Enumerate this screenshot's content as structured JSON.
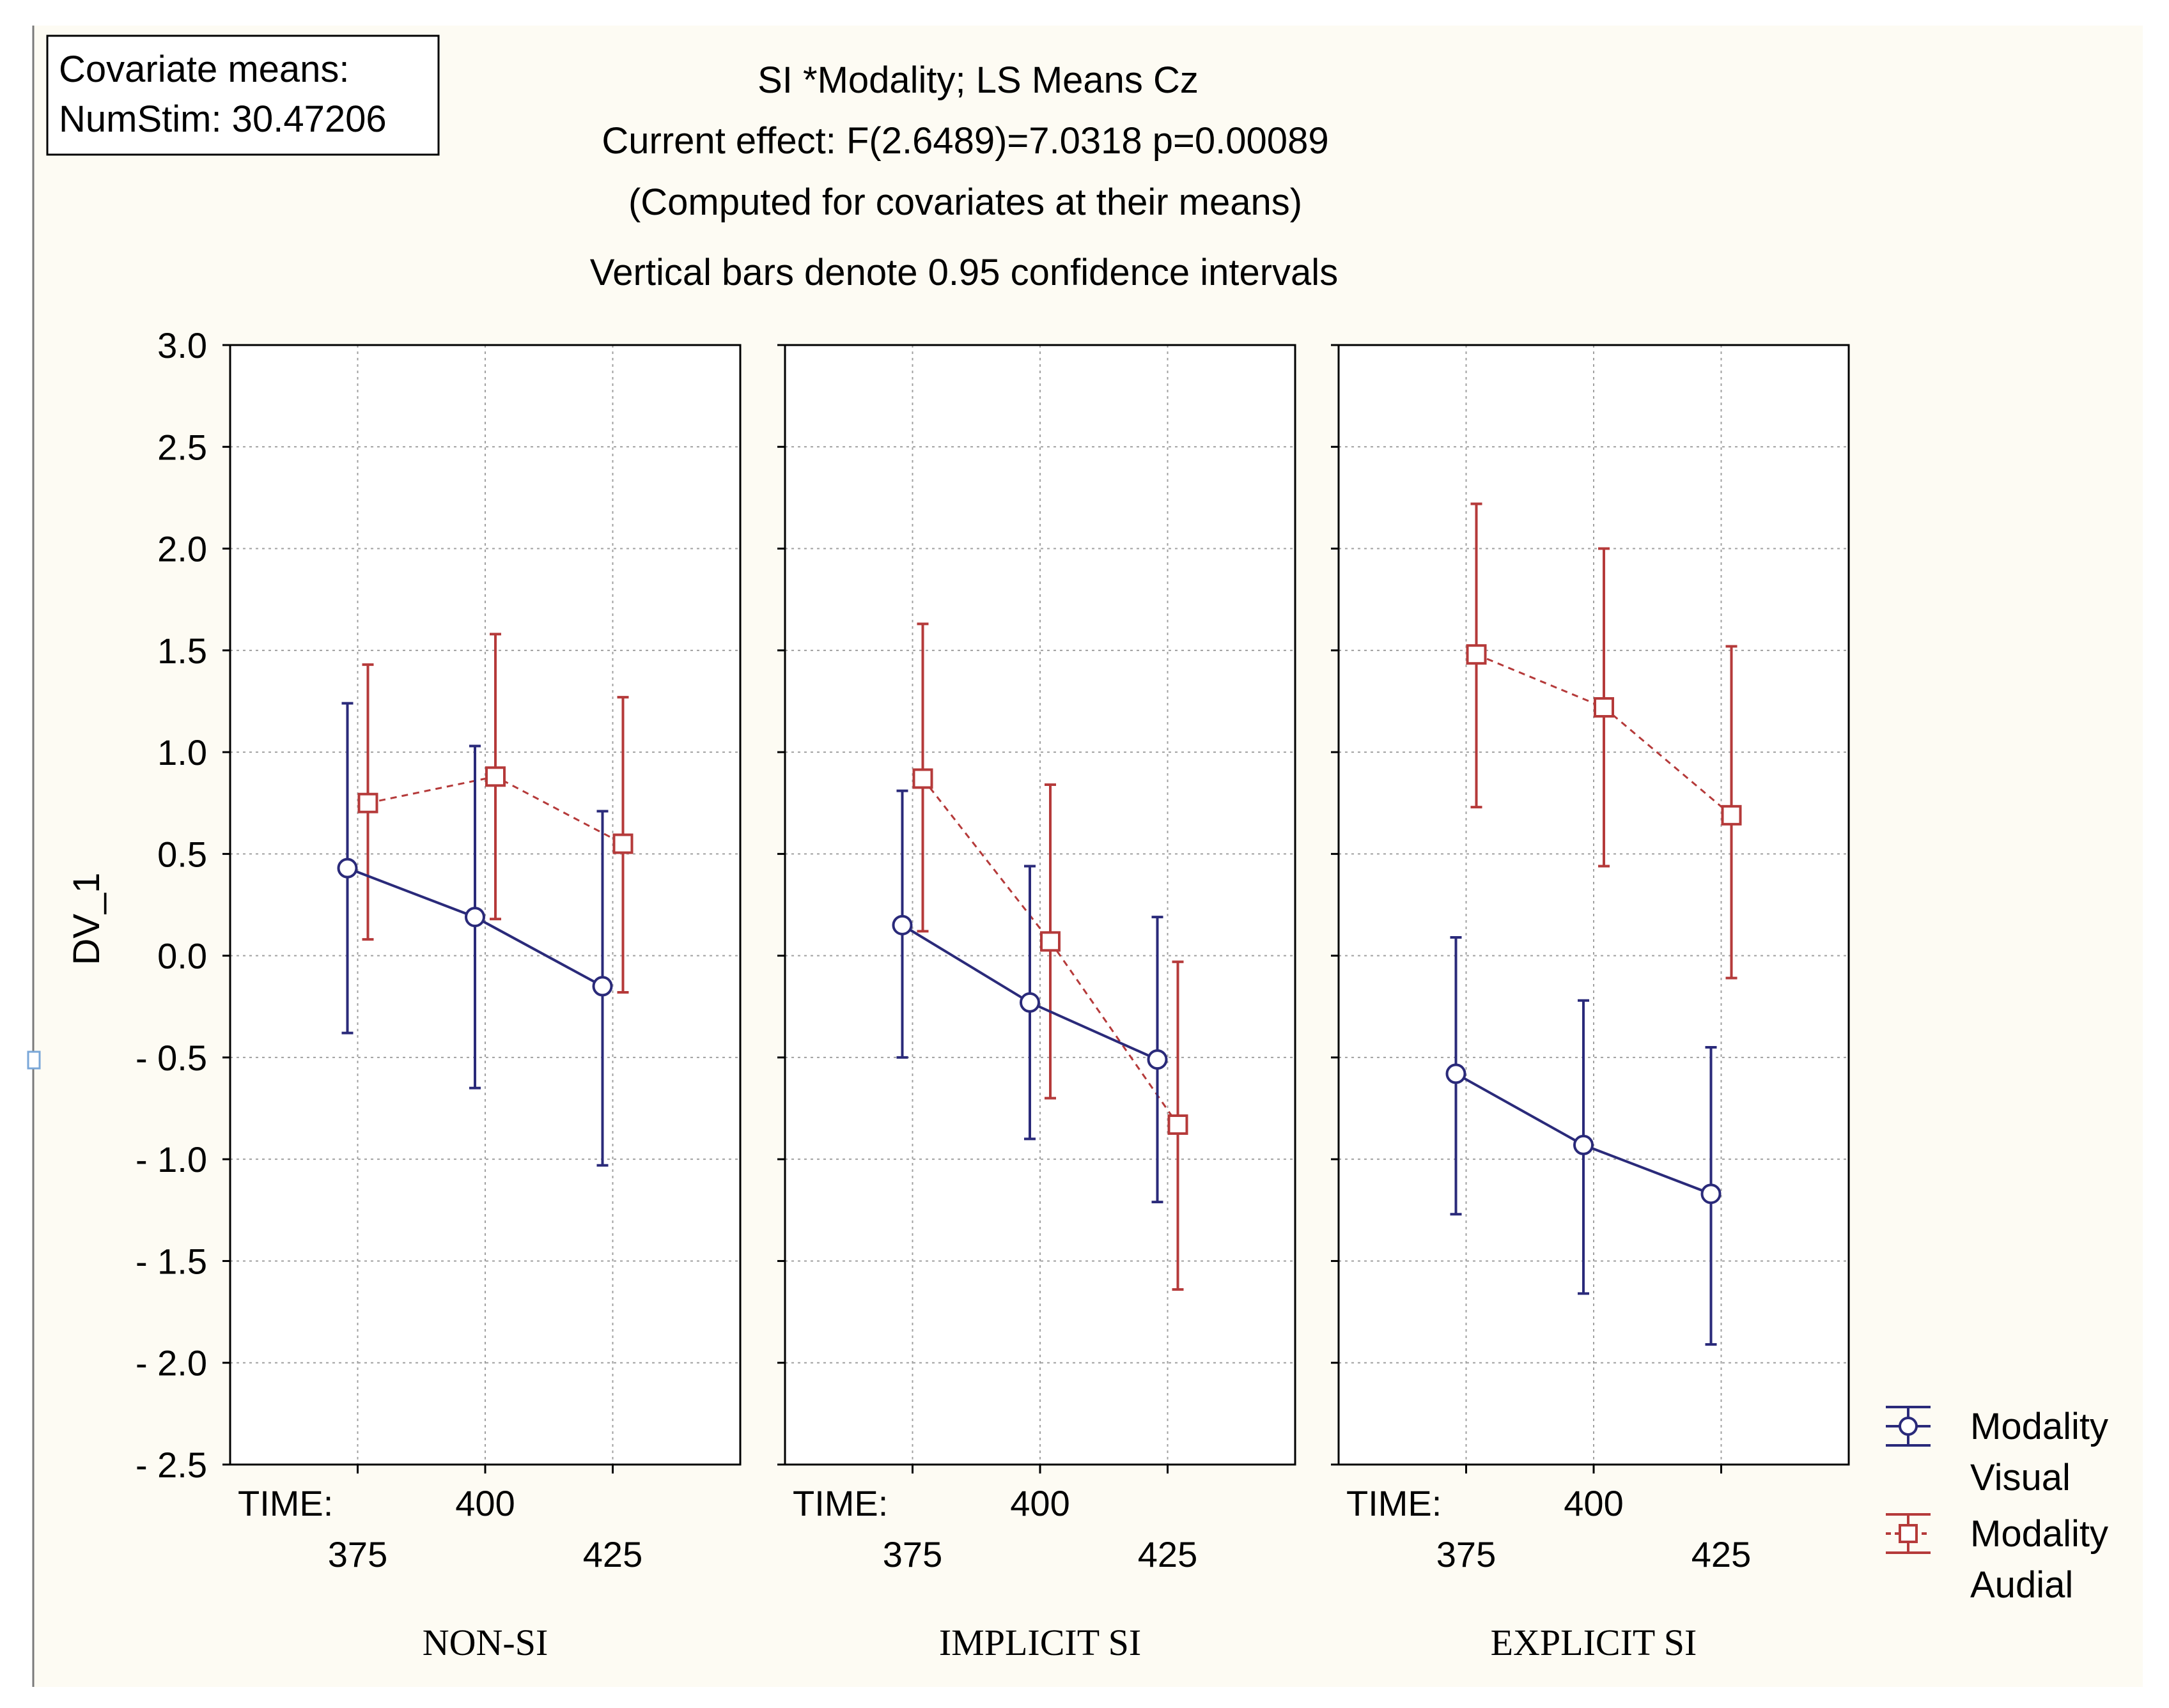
{
  "covariate_box": {
    "line1": "Covariate means:",
    "line2": "NumStim: 30.47206"
  },
  "colors": {
    "background": "#fdfbf3",
    "visual": "#2a2a7a",
    "audial": "#b53a3a",
    "grid": "#a0a0a0"
  },
  "chart_data": {
    "type": "line",
    "title": "SI *Modality; LS Means Cz",
    "subtitle_lines": [
      "Current effect: F(2.6489)=7.0318 p=0.00089",
      "(Computed for covariates at their means)",
      "Vertical bars denote 0.95 confidence intervals"
    ],
    "ylabel": "DV_1",
    "ylim": [
      -2.5,
      3.0
    ],
    "yticks": [
      "3.0",
      "2.5",
      "2.0",
      "1.5",
      "1.0",
      "0.5",
      "0.0",
      "- 0.5",
      "- 1.0",
      "- 1.5",
      "- 2.0",
      "- 2.5"
    ],
    "ytick_values": [
      3.0,
      2.5,
      2.0,
      1.5,
      1.0,
      0.5,
      0.0,
      -0.5,
      -1.0,
      -1.5,
      -2.0,
      -2.5
    ],
    "x_prefix": "TIME:",
    "categories": [
      "375",
      "400",
      "425"
    ],
    "grid": true,
    "panels": [
      {
        "label": "NON-SI",
        "series": [
          {
            "name": "Visual",
            "means": [
              0.43,
              0.19,
              -0.15
            ],
            "lower": [
              -0.38,
              -0.65,
              -1.03
            ],
            "upper": [
              1.24,
              1.03,
              0.71
            ]
          },
          {
            "name": "Audial",
            "means": [
              0.75,
              0.88,
              0.55
            ],
            "lower": [
              0.08,
              0.18,
              -0.18
            ],
            "upper": [
              1.43,
              1.58,
              1.27
            ]
          }
        ]
      },
      {
        "label": "IMPLICIT SI",
        "series": [
          {
            "name": "Visual",
            "means": [
              0.15,
              -0.23,
              -0.51
            ],
            "lower": [
              -0.5,
              -0.9,
              -1.21
            ],
            "upper": [
              0.81,
              0.44,
              0.19
            ]
          },
          {
            "name": "Audial",
            "means": [
              0.87,
              0.07,
              -0.83
            ],
            "lower": [
              0.12,
              -0.7,
              -1.64
            ],
            "upper": [
              1.63,
              0.84,
              -0.03
            ]
          }
        ]
      },
      {
        "label": "EXPLICIT SI",
        "series": [
          {
            "name": "Visual",
            "means": [
              -0.58,
              -0.93,
              -1.17
            ],
            "lower": [
              -1.27,
              -1.66,
              -1.91
            ],
            "upper": [
              0.09,
              -0.22,
              -0.45
            ]
          },
          {
            "name": "Audial",
            "means": [
              1.48,
              1.22,
              0.69
            ],
            "lower": [
              0.73,
              0.44,
              -0.11
            ],
            "upper": [
              2.22,
              2.0,
              1.52
            ]
          }
        ]
      }
    ],
    "legend": [
      {
        "series": "Visual",
        "line1": "Modality",
        "line2": "Visual"
      },
      {
        "series": "Audial",
        "line1": "Modality",
        "line2": "Audial"
      }
    ],
    "legend_position": "right"
  }
}
